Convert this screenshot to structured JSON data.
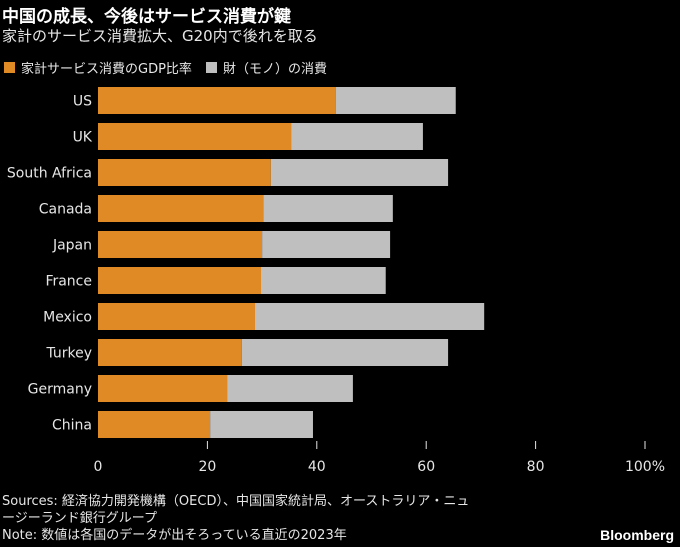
{
  "header": {
    "title": "中国の成長、今後はサービス消費が鍵",
    "subtitle": "家計のサービス消費拡大、G20内で後れを取る"
  },
  "colors": {
    "services": "#e08a26",
    "goods": "#bfbfbf"
  },
  "chart_data": {
    "type": "bar",
    "orientation": "horizontal",
    "stacked": true,
    "categories": [
      "US",
      "UK",
      "South Africa",
      "Canada",
      "Japan",
      "France",
      "Mexico",
      "Turkey",
      "Germany",
      "China"
    ],
    "series": [
      {
        "name": "家計サービス消費のGDP比率",
        "values": [
          43.5,
          35.3,
          31.6,
          30.2,
          30.0,
          29.8,
          28.7,
          26.3,
          23.6,
          20.5
        ]
      },
      {
        "name": "財（モノ）の消費",
        "values": [
          21.9,
          24.1,
          32.4,
          23.7,
          23.4,
          22.8,
          41.9,
          37.7,
          23.0,
          18.8
        ]
      }
    ],
    "xlim": [
      0,
      100
    ],
    "ticks": [
      "0",
      "20",
      "40",
      "60",
      "80",
      "100%"
    ],
    "tick_values": [
      0,
      20,
      40,
      60,
      80,
      100
    ],
    "legend_position": "top-left",
    "grid": false
  },
  "footer": {
    "sources_line1": "Sources: 経済協力開発機構（OECD）、中国国家統計局、オーストラリア・ニュ",
    "sources_line2": "ージーランド銀行グループ",
    "note": "Note: 数値は各国のデータが出そろっている直近の2023年",
    "brand": "Bloomberg"
  }
}
